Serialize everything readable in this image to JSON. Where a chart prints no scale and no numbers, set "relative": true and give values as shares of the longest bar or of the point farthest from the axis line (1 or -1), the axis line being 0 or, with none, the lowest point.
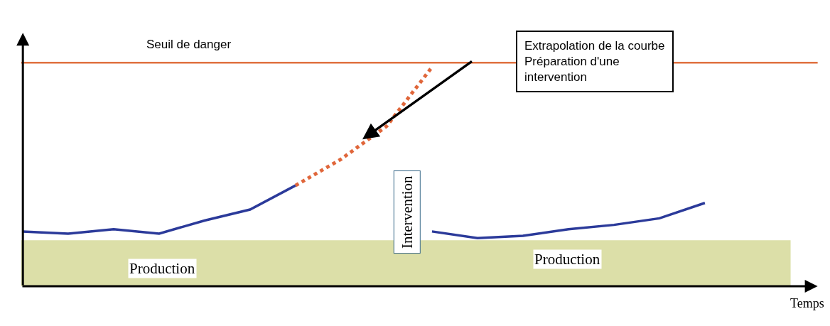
{
  "chart_data": {
    "type": "line",
    "relative": true,
    "xlabel": "Temps",
    "categories": [
      null,
      null,
      null,
      null,
      null,
      null,
      null,
      null,
      null,
      null,
      null,
      null,
      null,
      null,
      null,
      null
    ],
    "series": [
      {
        "color": "#2b3a9a",
        "values": [
          0.25,
          0.24,
          0.26,
          0.24,
          0.3,
          0.35,
          0.46,
          null,
          null,
          null,
          null,
          null,
          null,
          null,
          null,
          null
        ]
      },
      {
        "color": "#e0663a",
        "line_style": "dotted",
        "values": [
          null,
          null,
          null,
          null,
          null,
          null,
          0.46,
          0.58,
          0.73,
          1.0,
          null,
          null,
          null,
          null,
          null,
          null
        ]
      },
      {
        "color": "#2b3a9a",
        "values": [
          null,
          null,
          null,
          null,
          null,
          null,
          null,
          null,
          null,
          0.25,
          0.22,
          0.23,
          0.26,
          0.28,
          0.31,
          0.38
        ]
      }
    ],
    "ref_lines": [
      {
        "axis": "y",
        "value": 1.02,
        "label": "Seuil de danger",
        "color": "#e0703f"
      }
    ],
    "bands": [
      {
        "axis": "y",
        "from": 0,
        "to": 0.21,
        "color": "#dcdfa8"
      }
    ],
    "annotations": [
      "Extrapolation de la courbe\nPréparation d'une\nintervention",
      "Production",
      "Intervention",
      "Production"
    ],
    "line_style": "solid"
  }
}
